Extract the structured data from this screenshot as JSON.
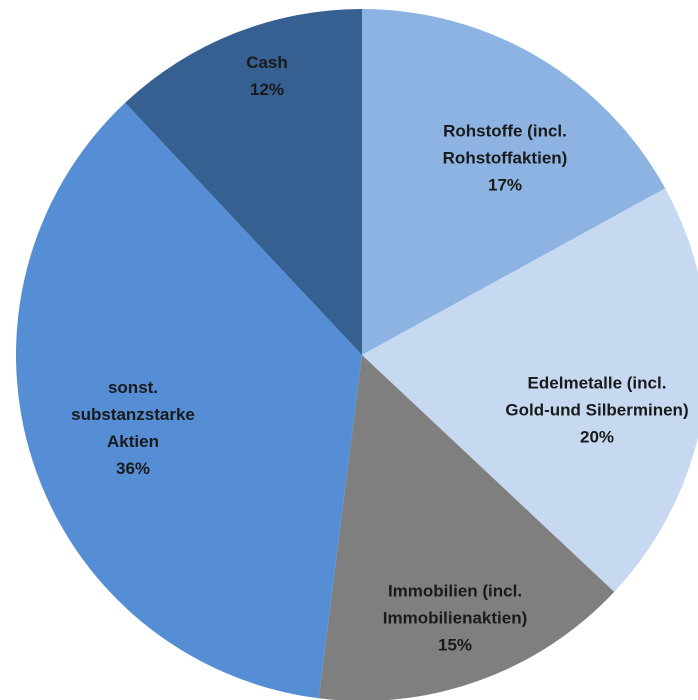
{
  "chart_data": {
    "type": "pie",
    "categories": [
      "Rohstoffe (incl. Rohstoffaktien)",
      "Edelmetalle (incl. Gold-und Silberminen)",
      "Immobilien (incl. Immobilienaktien)",
      "sonst. substanzstarke Aktien",
      "Cash"
    ],
    "values": [
      17,
      20,
      15,
      36,
      12
    ],
    "value_labels": [
      "17%",
      "20%",
      "15%",
      "36%",
      "12%"
    ],
    "colors": [
      "#8db3e2",
      "#c6d9f1",
      "#7f7f7f",
      "#558ed5",
      "#376092"
    ]
  }
}
